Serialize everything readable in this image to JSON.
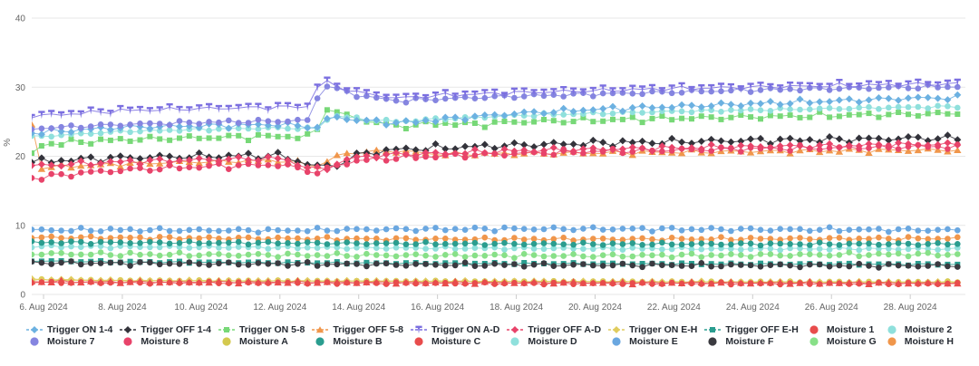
{
  "chart_data": {
    "type": "line",
    "title": "",
    "ylabel": "%",
    "xlabel": "",
    "grid": "horizontal",
    "legend_position": "bottom",
    "legend_rows": 2,
    "y_axis": {
      "min": 0,
      "max": 40,
      "ticks": [
        0,
        10,
        20,
        30,
        40
      ]
    },
    "x_axis": {
      "start_day": 5.7,
      "end_day": 29.4,
      "tick_days": [
        6,
        8,
        10,
        12,
        14,
        16,
        18,
        20,
        22,
        24,
        26,
        28
      ],
      "tick_labels": [
        "6. Aug 2024",
        "8. Aug 2024",
        "10. Aug 2024",
        "12. Aug 2024",
        "14. Aug 2024",
        "16. Aug 2024",
        "18. Aug 2024",
        "20. Aug 2024",
        "22. Aug 2024",
        "24. Aug 2024",
        "26. Aug 2024",
        "28. Aug 2024"
      ]
    },
    "series": [
      {
        "name": "Trigger ON 1-4",
        "color": "#6cb1e1",
        "marker": "diamond",
        "trigger": true,
        "osc": 0.38,
        "keypoints": [
          [
            5.7,
            23.4
          ],
          [
            8,
            24.2
          ],
          [
            10,
            24.4
          ],
          [
            12,
            24.6
          ],
          [
            13,
            24.2
          ],
          [
            13.3,
            25.8
          ],
          [
            14,
            25.2
          ],
          [
            15,
            24.8
          ],
          [
            16,
            25.3
          ],
          [
            18,
            26.2
          ],
          [
            20,
            26.8
          ],
          [
            22,
            27.2
          ],
          [
            24,
            27.6
          ],
          [
            26,
            28.0
          ],
          [
            28,
            28.4
          ],
          [
            29.4,
            28.5
          ]
        ]
      },
      {
        "name": "Trigger OFF 1-4",
        "color": "#33333b",
        "marker": "diamond",
        "trigger": true,
        "osc": 0.5,
        "keypoints": [
          [
            5.7,
            19.2
          ],
          [
            8,
            19.8
          ],
          [
            10,
            20.0
          ],
          [
            12,
            20.1
          ],
          [
            13,
            18.4
          ],
          [
            13.6,
            19.0
          ],
          [
            14,
            20.3
          ],
          [
            15,
            21.0
          ],
          [
            16,
            21.2
          ],
          [
            18,
            21.6
          ],
          [
            20,
            21.9
          ],
          [
            22,
            22.1
          ],
          [
            24,
            22.3
          ],
          [
            26,
            22.4
          ],
          [
            28,
            22.6
          ],
          [
            29.4,
            22.6
          ]
        ]
      },
      {
        "name": "Trigger ON 5-8",
        "color": "#77d877",
        "marker": "square",
        "trigger": true,
        "osc": 0.45,
        "keypoints": [
          [
            5.7,
            20.3
          ],
          [
            6.0,
            21.8
          ],
          [
            8,
            22.4
          ],
          [
            10,
            22.7
          ],
          [
            12,
            22.9
          ],
          [
            12.9,
            22.8
          ],
          [
            13.1,
            27.3
          ],
          [
            13.5,
            26.2
          ],
          [
            14,
            25.4
          ],
          [
            15,
            24.3
          ],
          [
            16,
            24.8
          ],
          [
            17,
            24.6
          ],
          [
            18,
            25.0
          ],
          [
            20,
            25.2
          ],
          [
            22,
            25.5
          ],
          [
            24,
            25.7
          ],
          [
            26,
            25.9
          ],
          [
            28,
            26.1
          ],
          [
            29.4,
            26.2
          ]
        ]
      },
      {
        "name": "Trigger OFF 5-8",
        "color": "#f0964b",
        "marker": "triangle",
        "trigger": true,
        "osc": 0.35,
        "keypoints": [
          [
            5.7,
            24.5
          ],
          [
            5.95,
            18.4
          ],
          [
            8,
            18.9
          ],
          [
            10,
            19.2
          ],
          [
            12,
            19.4
          ],
          [
            13,
            18.6
          ],
          [
            13.5,
            20.2
          ],
          [
            14,
            20.6
          ],
          [
            15,
            20.8
          ],
          [
            16,
            20.3
          ],
          [
            18,
            20.4
          ],
          [
            20,
            20.5
          ],
          [
            22,
            20.6
          ],
          [
            24,
            20.7
          ],
          [
            26,
            20.8
          ],
          [
            28,
            20.9
          ],
          [
            29.4,
            20.9
          ]
        ]
      },
      {
        "name": "Trigger ON A-D",
        "color": "#7b6fe0",
        "marker": "tack",
        "trigger": true,
        "osc": 0.35,
        "keypoints": [
          [
            5.7,
            25.8
          ],
          [
            8,
            26.6
          ],
          [
            10,
            26.9
          ],
          [
            12,
            27.1
          ],
          [
            12.8,
            27.2
          ],
          [
            13.0,
            31.1
          ],
          [
            13.4,
            30.2
          ],
          [
            14,
            29.2
          ],
          [
            15,
            28.4
          ],
          [
            16,
            28.8
          ],
          [
            17,
            29.0
          ],
          [
            18,
            29.2
          ],
          [
            20,
            29.5
          ],
          [
            22,
            29.8
          ],
          [
            24,
            30.0
          ],
          [
            26,
            30.2
          ],
          [
            28,
            30.4
          ],
          [
            29.4,
            30.5
          ]
        ]
      },
      {
        "name": "Trigger OFF A-D",
        "color": "#e8436a",
        "marker": "diamond",
        "trigger": true,
        "osc": 0.4,
        "keypoints": [
          [
            5.7,
            18.6
          ],
          [
            8,
            19.2
          ],
          [
            10,
            19.5
          ],
          [
            12,
            19.7
          ],
          [
            13,
            17.9
          ],
          [
            13.6,
            19.3
          ],
          [
            14,
            19.9
          ],
          [
            15,
            20.3
          ],
          [
            16,
            20.4
          ],
          [
            18,
            20.8
          ],
          [
            20,
            21.0
          ],
          [
            22,
            21.2
          ],
          [
            24,
            21.4
          ],
          [
            26,
            21.5
          ],
          [
            28,
            21.7
          ],
          [
            29.4,
            21.7
          ]
        ]
      },
      {
        "name": "Trigger ON E-H",
        "color": "#e0cc5e",
        "marker": "diamond",
        "trigger": true,
        "osc": 0.1,
        "keypoints": [
          [
            5.7,
            2.2
          ],
          [
            8,
            2.0
          ],
          [
            12,
            1.95
          ],
          [
            16,
            1.9
          ],
          [
            20,
            1.85
          ],
          [
            24,
            1.8
          ],
          [
            29.4,
            1.75
          ]
        ]
      },
      {
        "name": "Trigger OFF E-H",
        "color": "#2a9d8f",
        "marker": "square",
        "trigger": true,
        "osc": 0.13,
        "keypoints": [
          [
            5.7,
            4.85
          ],
          [
            8,
            4.7
          ],
          [
            12,
            4.6
          ],
          [
            16,
            4.5
          ],
          [
            20,
            4.45
          ],
          [
            24,
            4.4
          ],
          [
            29.4,
            4.35
          ]
        ]
      },
      {
        "name": "Moisture 1",
        "color": "#e84c4c",
        "marker": "circle",
        "trigger": false,
        "osc": 0.15,
        "keypoints": [
          [
            5.7,
            1.75
          ],
          [
            8,
            1.7
          ],
          [
            12,
            1.68
          ],
          [
            16,
            1.62
          ],
          [
            20,
            1.6
          ],
          [
            24,
            1.58
          ],
          [
            29.4,
            1.55
          ]
        ]
      },
      {
        "name": "Moisture 2",
        "color": "#8fe0dc",
        "marker": "circle",
        "trigger": false,
        "osc": 0.2,
        "keypoints": [
          [
            5.7,
            22.8
          ],
          [
            8,
            23.6
          ],
          [
            10,
            23.9
          ],
          [
            12,
            24.1
          ],
          [
            13,
            24.0
          ],
          [
            13.3,
            26.0
          ],
          [
            14,
            25.4
          ],
          [
            15,
            25.0
          ],
          [
            16,
            25.4
          ],
          [
            18,
            25.9
          ],
          [
            20,
            26.2
          ],
          [
            22,
            26.5
          ],
          [
            24,
            26.7
          ],
          [
            26,
            26.9
          ],
          [
            28,
            27.1
          ],
          [
            29.4,
            27.2
          ]
        ]
      },
      {
        "name": "Moisture 7",
        "color": "#8585e0",
        "marker": "circle",
        "trigger": false,
        "osc": 0.3,
        "keypoints": [
          [
            5.7,
            24.0
          ],
          [
            8,
            24.6
          ],
          [
            10,
            24.9
          ],
          [
            12,
            25.1
          ],
          [
            12.8,
            25.2
          ],
          [
            13.05,
            30.6
          ],
          [
            13.5,
            29.6
          ],
          [
            14,
            28.8
          ],
          [
            15,
            28.0
          ],
          [
            16,
            28.3
          ],
          [
            18,
            28.7
          ],
          [
            20,
            29.0
          ],
          [
            22,
            29.3
          ],
          [
            24,
            29.6
          ],
          [
            26,
            29.8
          ],
          [
            28,
            30.0
          ],
          [
            29.4,
            30.1
          ]
        ]
      },
      {
        "name": "Moisture 8",
        "color": "#e8436a",
        "marker": "circle",
        "trigger": false,
        "osc": 0.42,
        "keypoints": [
          [
            5.7,
            16.8
          ],
          [
            7,
            17.6
          ],
          [
            8,
            18.0
          ],
          [
            10,
            18.5
          ],
          [
            12,
            18.8
          ],
          [
            13,
            17.6
          ],
          [
            13.5,
            18.8
          ],
          [
            14,
            19.4
          ],
          [
            15,
            19.8
          ],
          [
            16,
            20.0
          ],
          [
            18,
            20.4
          ],
          [
            20,
            20.7
          ],
          [
            22,
            20.9
          ],
          [
            24,
            21.1
          ],
          [
            26,
            21.2
          ],
          [
            28,
            21.4
          ],
          [
            29.4,
            21.4
          ]
        ]
      },
      {
        "name": "Moisture A",
        "color": "#d4c94e",
        "marker": "circle",
        "trigger": false,
        "osc": 0.1,
        "keypoints": [
          [
            5.7,
            2.1
          ],
          [
            8,
            2.0
          ],
          [
            12,
            1.95
          ],
          [
            16,
            1.9
          ],
          [
            20,
            1.85
          ],
          [
            24,
            1.8
          ],
          [
            29.4,
            1.8
          ]
        ]
      },
      {
        "name": "Moisture B",
        "color": "#2a9d8f",
        "marker": "circle",
        "trigger": false,
        "osc": 0.2,
        "keypoints": [
          [
            5.7,
            7.55
          ],
          [
            8,
            7.5
          ],
          [
            12,
            7.45
          ],
          [
            16,
            7.35
          ],
          [
            20,
            7.3
          ],
          [
            24,
            7.3
          ],
          [
            29.4,
            7.3
          ]
        ]
      },
      {
        "name": "Moisture C",
        "color": "#e84c4c",
        "marker": "triangle",
        "legend_marker": "circle",
        "trigger": false,
        "osc": 0.2,
        "keypoints": [
          [
            5.7,
            1.85
          ],
          [
            8,
            1.8
          ],
          [
            12,
            1.78
          ],
          [
            16,
            1.72
          ],
          [
            20,
            1.7
          ],
          [
            24,
            1.68
          ],
          [
            29.4,
            1.65
          ]
        ]
      },
      {
        "name": "Moisture D",
        "color": "#8fe0dc",
        "marker": "circle",
        "trigger": false,
        "osc": 0.2,
        "keypoints": [
          [
            5.7,
            6.95
          ],
          [
            8,
            6.9
          ],
          [
            12,
            6.8
          ],
          [
            16,
            6.7
          ],
          [
            20,
            6.65
          ],
          [
            24,
            6.6
          ],
          [
            29.4,
            6.6
          ]
        ]
      },
      {
        "name": "Moisture E",
        "color": "#6aa7e0",
        "marker": "circle",
        "trigger": false,
        "osc": 0.3,
        "keypoints": [
          [
            5.7,
            9.3
          ],
          [
            8,
            9.35
          ],
          [
            10,
            9.3
          ],
          [
            12,
            9.25
          ],
          [
            14,
            9.4
          ],
          [
            16,
            9.45
          ],
          [
            18,
            9.5
          ],
          [
            20,
            9.5
          ],
          [
            22,
            9.45
          ],
          [
            24,
            9.4
          ],
          [
            26,
            9.4
          ],
          [
            28,
            9.35
          ],
          [
            29.4,
            9.3
          ]
        ]
      },
      {
        "name": "Moisture F",
        "color": "#3a3a40",
        "marker": "circle",
        "trigger": false,
        "osc": 0.3,
        "keypoints": [
          [
            5.7,
            4.6
          ],
          [
            8,
            4.5
          ],
          [
            12,
            4.4
          ],
          [
            14,
            4.35
          ],
          [
            16,
            4.3
          ],
          [
            20,
            4.25
          ],
          [
            24,
            4.2
          ],
          [
            29.4,
            4.15
          ]
        ]
      },
      {
        "name": "Moisture G",
        "color": "#88e088",
        "marker": "circle",
        "trigger": false,
        "osc": 0.3,
        "keypoints": [
          [
            5.7,
            5.9
          ],
          [
            8,
            5.8
          ],
          [
            12,
            5.7
          ],
          [
            16,
            5.65
          ],
          [
            20,
            5.6
          ],
          [
            24,
            5.7
          ],
          [
            28,
            5.8
          ],
          [
            29.4,
            5.8
          ]
        ]
      },
      {
        "name": "Moisture H",
        "color": "#f0964b",
        "marker": "circle",
        "trigger": false,
        "osc": 0.25,
        "keypoints": [
          [
            5.7,
            8.25
          ],
          [
            8,
            8.2
          ],
          [
            12,
            8.1
          ],
          [
            16,
            8.0
          ],
          [
            20,
            8.0
          ],
          [
            24,
            8.05
          ],
          [
            29.4,
            8.1
          ]
        ]
      }
    ],
    "draw_order": [
      "Moisture A",
      "Trigger ON E-H",
      "Moisture 1",
      "Moisture C",
      "Trigger OFF E-H",
      "Moisture D",
      "Moisture G",
      "Moisture F",
      "Moisture H",
      "Moisture B",
      "Moisture E",
      "Trigger OFF 5-8",
      "Trigger OFF 1-4",
      "Moisture 8",
      "Trigger OFF A-D",
      "Trigger ON 5-8",
      "Moisture 2",
      "Trigger ON 1-4",
      "Moisture 7",
      "Trigger ON A-D"
    ]
  }
}
